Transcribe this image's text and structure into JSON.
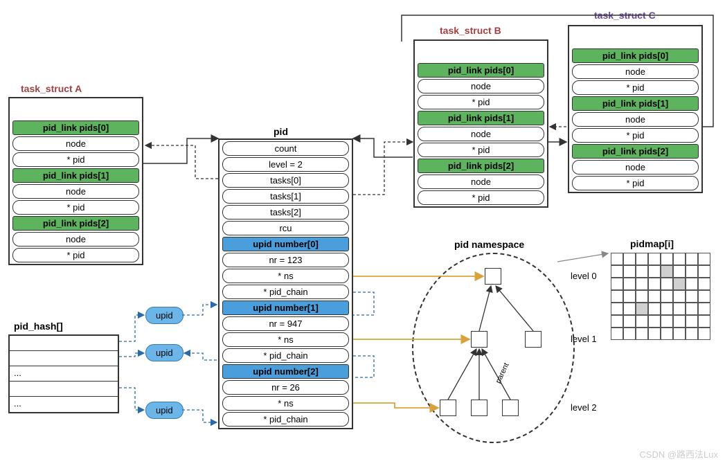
{
  "colors": {
    "green": "#5eb35e",
    "blue": "#4a9edb",
    "upid_bubble": "#6bb5e8",
    "arrow_orange": "#d9a23d",
    "arrow_dashed": "#2b6aa8",
    "arrow_gray": "#888888",
    "border": "#333333"
  },
  "task_a": {
    "title": "task_struct A",
    "title_color": "#a04040",
    "pids": [
      {
        "header": "pid_link pids[0]",
        "node": "node",
        "pid": "* pid"
      },
      {
        "header": "pid_link pids[1]",
        "node": "node",
        "pid": "* pid"
      },
      {
        "header": "pid_link pids[2]",
        "node": "node",
        "pid": "* pid"
      }
    ]
  },
  "task_b": {
    "title": "task_struct B",
    "title_color": "#a04040",
    "pids": [
      {
        "header": "pid_link pids[0]",
        "node": "node",
        "pid": "* pid"
      },
      {
        "header": "pid_link pids[1]",
        "node": "node",
        "pid": "* pid"
      },
      {
        "header": "pid_link pids[2]",
        "node": "node",
        "pid": "* pid"
      }
    ]
  },
  "task_c": {
    "title": "task_struct C",
    "title_color": "#6a4a9a",
    "pids": [
      {
        "header": "pid_link pids[0]",
        "node": "node",
        "pid": "* pid"
      },
      {
        "header": "pid_link pids[1]",
        "node": "node",
        "pid": "* pid"
      },
      {
        "header": "pid_link pids[2]",
        "node": "node",
        "pid": "* pid"
      }
    ]
  },
  "pid_struct": {
    "title": "pid",
    "rows": [
      "count",
      "level = 2",
      "tasks[0]",
      "tasks[1]",
      "tasks[2]",
      "rcu"
    ],
    "upids": [
      {
        "header": "upid number[0]",
        "nr": "nr = 123",
        "ns": "* ns",
        "chain": "* pid_chain"
      },
      {
        "header": "upid number[1]",
        "nr": "nr = 947",
        "ns": "* ns",
        "chain": "* pid_chain"
      },
      {
        "header": "upid number[2]",
        "nr": "nr = 26",
        "ns": "* ns",
        "chain": "* pid_chain"
      }
    ]
  },
  "pid_hash": {
    "title": "pid_hash[]",
    "rows": [
      "",
      "",
      "...",
      "",
      "..."
    ]
  },
  "upid_bubbles": [
    "upid",
    "upid",
    "upid"
  ],
  "namespace": {
    "title": "pid namespace",
    "levels": [
      "level 0",
      "level 1",
      "level 2"
    ],
    "parent_label": "parent"
  },
  "pidmap": {
    "title": "pidmap[i]",
    "rows": 7,
    "cols": 8,
    "filled": [
      [
        1,
        4
      ],
      [
        2,
        5
      ],
      [
        4,
        2
      ]
    ]
  },
  "watermark": "CSDN @路西法Lux"
}
